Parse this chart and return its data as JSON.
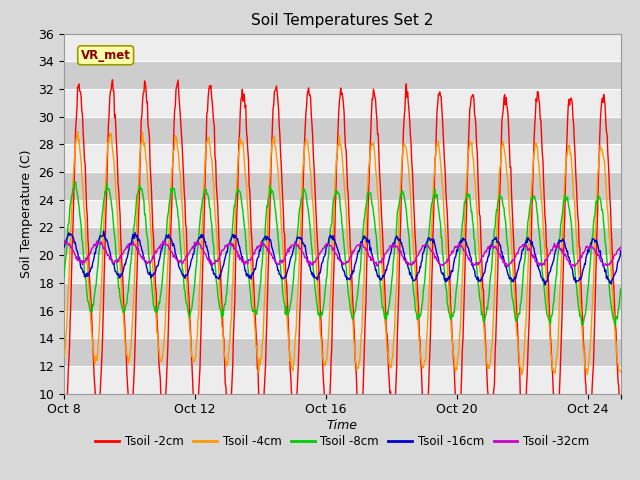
{
  "title": "Soil Temperatures Set 2",
  "xlabel": "Time",
  "ylabel": "Soil Temperature (C)",
  "ylim": [
    10,
    36
  ],
  "yticks": [
    10,
    12,
    14,
    16,
    18,
    20,
    22,
    24,
    26,
    28,
    30,
    32,
    34,
    36
  ],
  "series_colors": [
    "#ff0000",
    "#ff9900",
    "#00cc00",
    "#0000cc",
    "#cc00cc"
  ],
  "series_labels": [
    "Tsoil -2cm",
    "Tsoil -4cm",
    "Tsoil -8cm",
    "Tsoil -16cm",
    "Tsoil -32cm"
  ],
  "annotation_text": "VR_met",
  "background_color": "#d8d8d8",
  "num_days": 17,
  "samples_per_day": 48
}
